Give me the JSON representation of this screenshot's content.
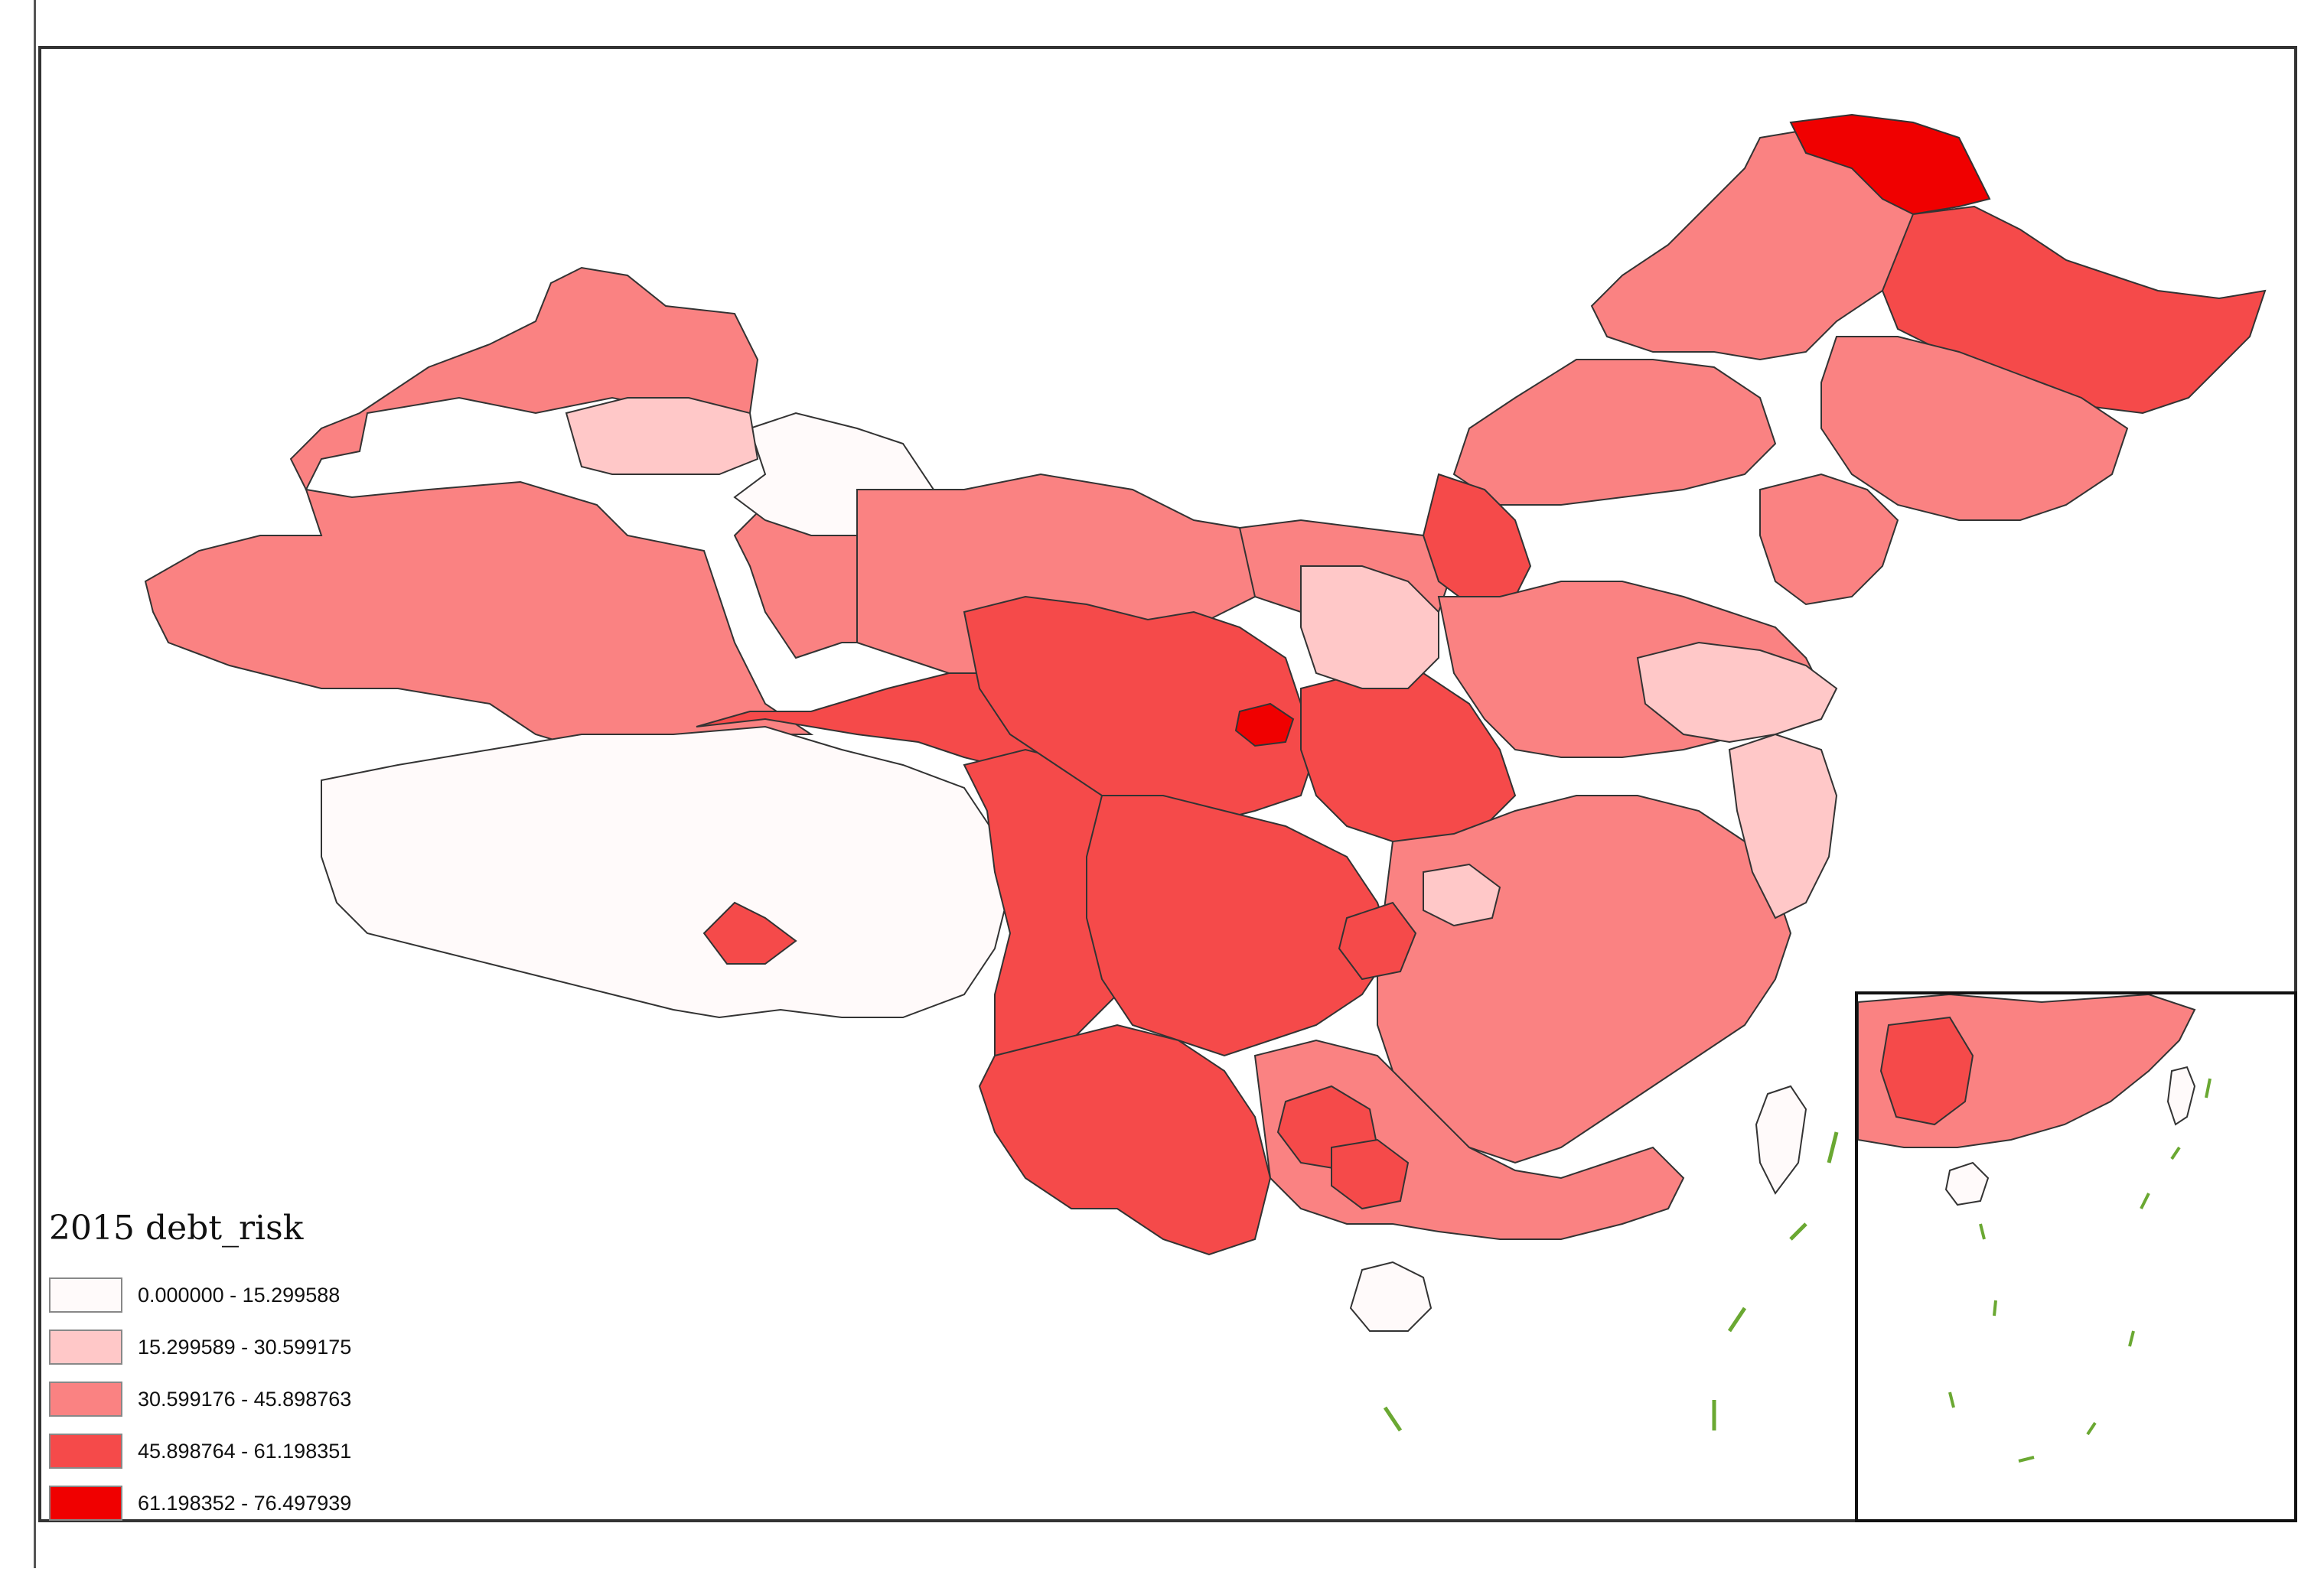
{
  "legend": {
    "title": "2015 debt_risk",
    "classes": [
      {
        "label": "0.000000 - 15.299588",
        "min": 0.0,
        "max": 15.299588,
        "color": "#fffafa"
      },
      {
        "label": "15.299589 - 30.599175",
        "min": 15.299589,
        "max": 30.599175,
        "color": "#ffc8c8"
      },
      {
        "label": "30.599176 - 45.898763",
        "min": 30.599176,
        "max": 45.898763,
        "color": "#fa8282"
      },
      {
        "label": "45.898764 - 61.198351",
        "min": 45.898764,
        "max": 61.198351,
        "color": "#f54a4a"
      },
      {
        "label": "61.198352 - 76.497939",
        "min": 61.198352,
        "max": 76.497939,
        "color": "#f00000"
      }
    ]
  },
  "colors": {
    "boundary": "#333333",
    "frame": "#333333",
    "nine_dash_line": "#6aa832"
  }
}
